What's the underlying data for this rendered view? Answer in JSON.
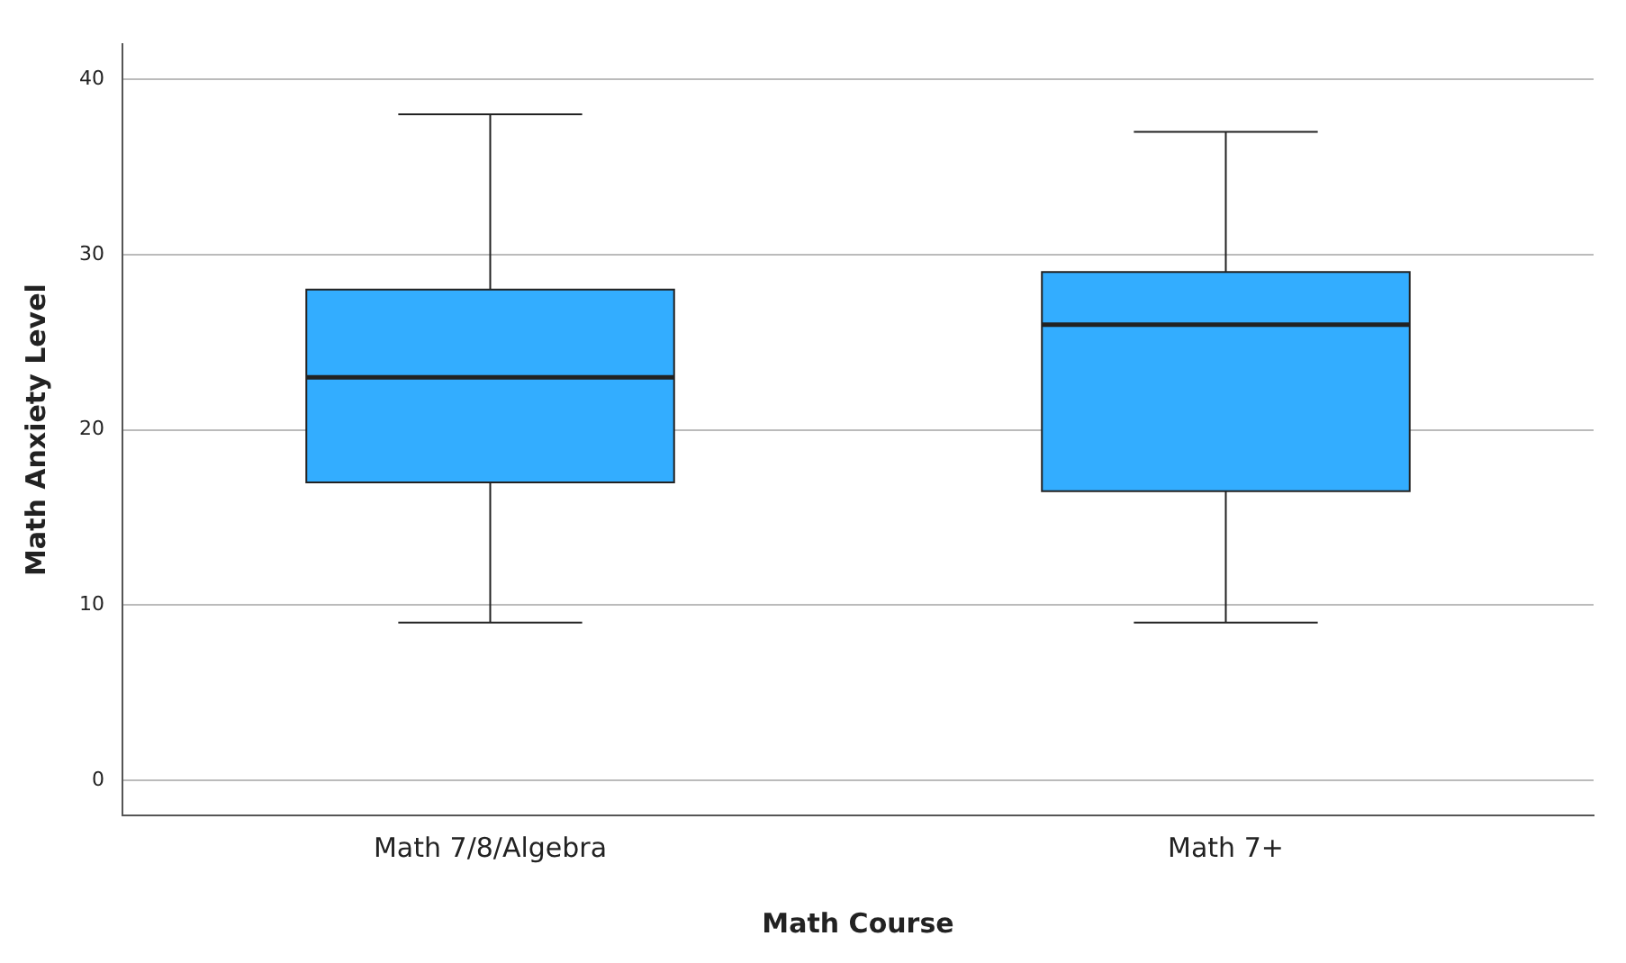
{
  "chart_data": {
    "type": "box",
    "xlabel": "Math Course",
    "ylabel": "Math Anxiety Level",
    "categories": [
      "Math 7/8/Algebra",
      "Math 7+"
    ],
    "color": "#33adff",
    "boxes": [
      {
        "low": 9,
        "q1": 17,
        "median": 23,
        "q3": 28,
        "high": 38
      },
      {
        "low": 9,
        "q1": 16.5,
        "median": 26,
        "q3": 29,
        "high": 37
      }
    ],
    "ylim": [
      -2,
      42
    ],
    "yticks": [
      0,
      10,
      20,
      30,
      40
    ],
    "grid": "y"
  }
}
